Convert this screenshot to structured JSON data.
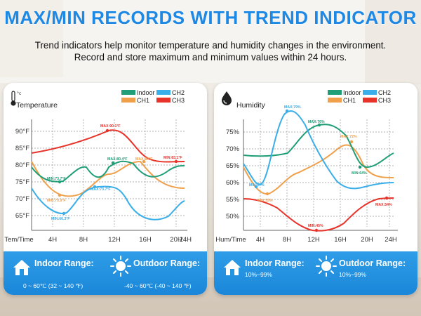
{
  "header": {
    "title": "MAX/MIN RECORDS WITH TREND INDICATOR",
    "subtitle_line1": "Trend indicators help monitor temperature and humidity changes in the environment.",
    "subtitle_line2": "Record and store maximum and minimum values within 24 hours."
  },
  "colors": {
    "title_blue": "#1e88e5",
    "indoor": "#1f9e77",
    "ch1": "#f0a04b",
    "ch2": "#3aaee8",
    "ch3": "#e8332a",
    "range_bar": "#2296e3"
  },
  "temperature": {
    "label": "Temperature",
    "unit_icon": "thermometer-icon",
    "legend": [
      "Indoor",
      "CH1",
      "CH2",
      "CH3"
    ],
    "y_ticks": [
      "90°F",
      "85°F",
      "80°F",
      "75°F",
      "70°F",
      "65°F"
    ],
    "x_ticks": [
      "Tem/Time",
      "4H",
      "8H",
      "12H",
      "16H",
      "20H",
      "24H"
    ],
    "annotations": [
      "MAX:90.1°F",
      "MIN:83.1°F",
      "MAX:80.4°F",
      "MAX:80°F",
      "MIN:73.7°F",
      "MAX:73.7°F",
      "MIN:70.9°F",
      "MIN:66.3°F"
    ],
    "range": {
      "indoor_label": "Indoor Range:",
      "indoor_value": "0 ~ 60℃ (32 ~ 140 ℉)",
      "outdoor_label": "Outdoor Range:",
      "outdoor_value": "-40 ~ 60℃ (-40 ~ 140 ℉)"
    }
  },
  "humidity": {
    "label": "Humidity",
    "unit_icon": "water-drop-icon",
    "legend": [
      "Indoor",
      "CH1",
      "CH2",
      "CH3"
    ],
    "y_ticks": [
      "75%",
      "70%",
      "65%",
      "60%",
      "55%",
      "50%"
    ],
    "x_ticks": [
      "Hum/Time",
      "4H",
      "8H",
      "12H",
      "16H",
      "20H",
      "24H"
    ],
    "annotations": [
      "MAX:79%",
      "MAX:76%",
      "MAX:72%",
      "MIN:57%",
      "MIN:55%",
      "MIN:64%",
      "MAX:54%",
      "MIN:45%"
    ],
    "range": {
      "indoor_label": "Indoor Range:",
      "indoor_value": "10%~99%",
      "outdoor_label": "Outdoor Range:",
      "outdoor_value": "10%~99%"
    }
  }
}
